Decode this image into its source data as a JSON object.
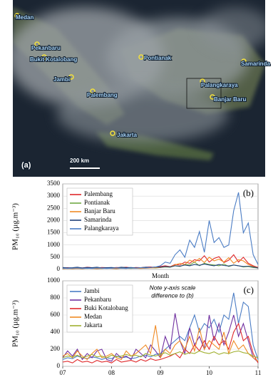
{
  "map": {
    "panel_label": "(a)",
    "scale": "200 km",
    "cities": [
      "Medan",
      "Pekanbaru",
      "Bukit Kotalobang",
      "Jambi",
      "Palembang",
      "Pontianak",
      "Samarinda",
      "Palangkaraya",
      "Banjar Baru",
      "Jakarta"
    ]
  },
  "chart_data": [
    {
      "type": "line",
      "panel_label": "(b)",
      "xlabel": "Month",
      "ylabel": "PM₁₀ (µg.m⁻³)",
      "x": [
        7,
        7.1,
        7.2,
        7.3,
        7.4,
        7.5,
        7.6,
        7.7,
        7.8,
        7.9,
        8,
        8.1,
        8.2,
        8.3,
        8.4,
        8.5,
        8.6,
        8.7,
        8.8,
        8.9,
        9,
        9.1,
        9.2,
        9.3,
        9.4,
        9.5,
        9.6,
        9.7,
        9.8,
        9.9,
        10,
        10.1,
        10.2,
        10.3,
        10.4,
        10.5,
        10.6,
        10.7,
        10.8,
        10.9,
        11
      ],
      "xlim": [
        7,
        11
      ],
      "ylim": [
        0,
        3500
      ],
      "yticks": [
        0,
        500,
        1000,
        1500,
        2000,
        2500,
        3000,
        3500
      ],
      "grid": true,
      "legend": "top-left",
      "series": [
        {
          "name": "Palembang",
          "color": "#e0282a",
          "values": [
            60,
            70,
            50,
            80,
            60,
            90,
            70,
            60,
            80,
            70,
            60,
            80,
            70,
            90,
            60,
            80,
            70,
            90,
            100,
            80,
            120,
            150,
            110,
            200,
            180,
            300,
            250,
            400,
            350,
            560,
            300,
            450,
            520,
            280,
            380,
            600,
            300,
            500,
            250,
            150,
            80
          ]
        },
        {
          "name": "Pontianak",
          "color": "#70a844",
          "values": [
            40,
            50,
            40,
            60,
            50,
            40,
            50,
            60,
            40,
            50,
            50,
            40,
            60,
            50,
            40,
            60,
            50,
            60,
            70,
            60,
            80,
            100,
            90,
            150,
            120,
            200,
            180,
            300,
            150,
            250,
            200,
            180,
            150,
            220,
            120,
            180,
            150,
            100,
            120,
            80,
            60
          ]
        },
        {
          "name": "Banjar Baru",
          "color": "#f08a24",
          "values": [
            30,
            40,
            30,
            40,
            30,
            50,
            40,
            30,
            40,
            50,
            40,
            30,
            50,
            40,
            60,
            50,
            40,
            50,
            60,
            70,
            80,
            120,
            100,
            180,
            250,
            200,
            380,
            300,
            450,
            280,
            500,
            350,
            420,
            300,
            480,
            250,
            400,
            350,
            200,
            120,
            70
          ]
        },
        {
          "name": "Samarinda",
          "color": "#1f3f78",
          "values": [
            80,
            60,
            70,
            90,
            60,
            80,
            70,
            90,
            60,
            70,
            80,
            60,
            90,
            70,
            80,
            60,
            70,
            90,
            80,
            100,
            90,
            120,
            100,
            150,
            130,
            180,
            150,
            200,
            170,
            220,
            180,
            150,
            200,
            160,
            140,
            180,
            150,
            120,
            130,
            100,
            60
          ]
        },
        {
          "name": "Palangkaraya",
          "color": "#4a7cc4",
          "values": [
            50,
            40,
            50,
            60,
            40,
            50,
            40,
            60,
            50,
            40,
            50,
            60,
            50,
            40,
            60,
            50,
            70,
            60,
            80,
            100,
            150,
            300,
            250,
            600,
            800,
            500,
            1200,
            900,
            1550,
            700,
            2000,
            1100,
            1300,
            900,
            1000,
            2400,
            3150,
            1500,
            1900,
            600,
            200
          ]
        }
      ]
    },
    {
      "type": "line",
      "panel_label": "(c)",
      "ylabel": "PM₁₀ (µg.m⁻³)",
      "annotation": [
        "Note y-axis scale",
        "difference to (b)"
      ],
      "x": [
        7,
        7.1,
        7.2,
        7.3,
        7.4,
        7.5,
        7.6,
        7.7,
        7.8,
        7.9,
        8,
        8.1,
        8.2,
        8.3,
        8.4,
        8.5,
        8.6,
        8.7,
        8.8,
        8.9,
        9,
        9.1,
        9.2,
        9.3,
        9.4,
        9.5,
        9.6,
        9.7,
        9.8,
        9.9,
        10,
        10.1,
        10.2,
        10.3,
        10.4,
        10.5,
        10.6,
        10.7,
        10.8,
        10.9,
        11
      ],
      "xlim": [
        7,
        11
      ],
      "xticks": [
        {
          "value": 7,
          "label": "07"
        },
        {
          "value": 8,
          "label": "08"
        },
        {
          "value": 9,
          "label": "09"
        },
        10,
        11
      ],
      "ylim": [
        0,
        1000
      ],
      "yticks": [
        0,
        200,
        400,
        600,
        800,
        1000
      ],
      "grid": true,
      "legend": "top-left",
      "series": [
        {
          "name": "Jambi",
          "color": "#4a7cc4",
          "values": [
            80,
            100,
            90,
            120,
            100,
            90,
            110,
            100,
            80,
            100,
            90,
            120,
            100,
            110,
            90,
            100,
            120,
            130,
            110,
            140,
            150,
            200,
            250,
            300,
            350,
            300,
            450,
            600,
            400,
            500,
            450,
            550,
            400,
            600,
            550,
            860,
            500,
            750,
            700,
            250,
            80
          ]
        },
        {
          "name": "Pekanbaru",
          "color": "#7030a0",
          "values": [
            100,
            180,
            120,
            200,
            80,
            150,
            100,
            180,
            200,
            80,
            60,
            150,
            100,
            120,
            80,
            200,
            150,
            100,
            250,
            180,
            100,
            350,
            200,
            620,
            300,
            150,
            450,
            250,
            350,
            200,
            600,
            300,
            500,
            250,
            400,
            600,
            350,
            500,
            300,
            100,
            50
          ]
        },
        {
          "name": "Buki Kotalobang",
          "color": "#e0282a",
          "values": [
            50,
            60,
            40,
            80,
            50,
            60,
            40,
            70,
            50,
            60,
            40,
            80,
            50,
            60,
            70,
            50,
            80,
            60,
            90,
            70,
            80,
            100,
            120,
            150,
            100,
            200,
            150,
            250,
            180,
            300,
            200,
            350,
            250,
            300,
            200,
            400,
            500,
            300,
            350,
            150,
            40
          ]
        },
        {
          "name": "Medan",
          "color": "#f08a24",
          "values": [
            120,
            150,
            100,
            180,
            120,
            80,
            150,
            200,
            100,
            120,
            150,
            100,
            80,
            180,
            120,
            150,
            200,
            250,
            150,
            480,
            100,
            200,
            150,
            250,
            300,
            200,
            350,
            180,
            450,
            200,
            300,
            250,
            200,
            400,
            150,
            300,
            200,
            250,
            150,
            100,
            60
          ]
        },
        {
          "name": "Jakarta",
          "color": "#a0b030",
          "values": [
            100,
            120,
            110,
            130,
            100,
            120,
            140,
            110,
            120,
            100,
            130,
            110,
            120,
            140,
            120,
            130,
            110,
            150,
            130,
            120,
            140,
            160,
            130,
            150,
            170,
            140,
            160,
            150,
            180,
            160,
            150,
            170,
            140,
            160,
            150,
            170,
            180,
            160,
            150,
            120,
            100
          ]
        }
      ]
    }
  ]
}
